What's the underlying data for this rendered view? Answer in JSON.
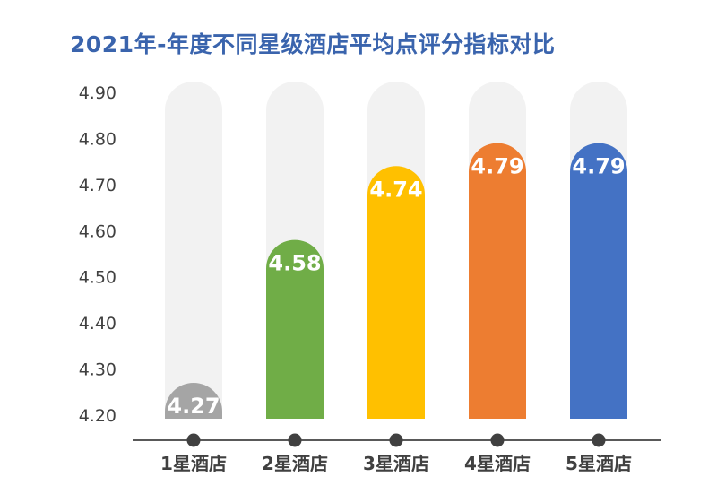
{
  "chart_data": {
    "type": "bar",
    "title": "2021年-年度不同星级酒店平均点评分指标对比",
    "xlabel": "",
    "ylabel": "",
    "categories": [
      "1星酒店",
      "2星酒店",
      "3星酒店",
      "4星酒店",
      "5星酒店"
    ],
    "values": [
      4.27,
      4.58,
      4.74,
      4.79,
      4.79
    ],
    "value_labels": [
      "4.27",
      "4.58",
      "4.74",
      "4.79",
      "4.79"
    ],
    "yticks": [
      "4.20",
      "4.30",
      "4.40",
      "4.50",
      "4.60",
      "4.70",
      "4.80",
      "4.90"
    ],
    "ylim": [
      4.2,
      4.9
    ],
    "grid": false,
    "legend": "none",
    "colors": [
      "#a5a5a5",
      "#70ad47",
      "#ffc000",
      "#ed7d31",
      "#4472c4"
    ],
    "background_track_color": "#f2f2f2",
    "axis_color": "#595959",
    "title_color": "#3a64ad"
  }
}
